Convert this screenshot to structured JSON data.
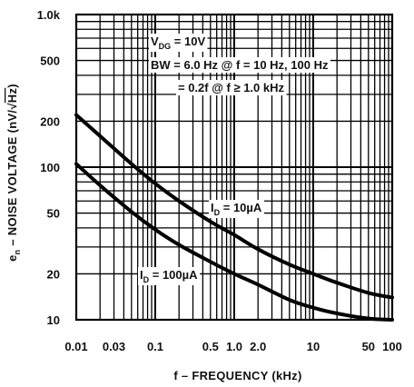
{
  "chart_data": {
    "type": "line",
    "xscale": "log",
    "yscale": "log",
    "xlim": [
      0.01,
      100
    ],
    "ylim": [
      10,
      1000
    ],
    "xlabel": "f – FREQUENCY (kHz)",
    "ylabel": {
      "prefix": "e",
      "prefix_sub": "n",
      "main": " – NOISE VOLTAGE (nV/√",
      "over": "Hz",
      "suffix": ")"
    },
    "x_ticks": [
      {
        "value": 0.01,
        "label": "0.01"
      },
      {
        "value": 0.03,
        "label": "0.03"
      },
      {
        "value": 0.1,
        "label": "0.1"
      },
      {
        "value": 0.5,
        "label": "0.5"
      },
      {
        "value": 1,
        "label": "1.0"
      },
      {
        "value": 2,
        "label": "2.0"
      },
      {
        "value": 10,
        "label": "10"
      },
      {
        "value": 50,
        "label": "50"
      },
      {
        "value": 100,
        "label": "100"
      }
    ],
    "y_ticks": [
      {
        "value": 10,
        "label": "10"
      },
      {
        "value": 20,
        "label": "20"
      },
      {
        "value": 50,
        "label": "50"
      },
      {
        "value": 100,
        "label": "100"
      },
      {
        "value": 200,
        "label": "200"
      },
      {
        "value": 500,
        "label": "500"
      },
      {
        "value": 1000,
        "label": "1.0k"
      }
    ],
    "grid": true,
    "conditions": {
      "line1": {
        "pre": "V",
        "sub": "DG",
        "post": " = 10V"
      },
      "line2": "BW = 6.0 Hz @ f = 10 Hz, 100 Hz",
      "line3": "= 0.2f @ f ≥ 1.0 kHz"
    },
    "series": [
      {
        "label": {
          "pre": "I",
          "sub": "D",
          "post": " = 10µA"
        },
        "x": [
          0.01,
          0.02,
          0.05,
          0.1,
          0.2,
          0.5,
          1,
          2,
          5,
          10,
          20,
          50,
          100
        ],
        "y": [
          220,
          160,
          105,
          78,
          60,
          44,
          36,
          29,
          23,
          20,
          17.5,
          15,
          14
        ]
      },
      {
        "label": {
          "pre": "I",
          "sub": "D",
          "post": " = 100µA"
        },
        "x": [
          0.01,
          0.02,
          0.05,
          0.1,
          0.2,
          0.5,
          1,
          2,
          5,
          10,
          20,
          50,
          100
        ],
        "y": [
          105,
          76,
          51,
          39,
          31,
          24,
          20,
          17,
          13.5,
          12,
          11,
          10.2,
          10
        ]
      }
    ]
  }
}
